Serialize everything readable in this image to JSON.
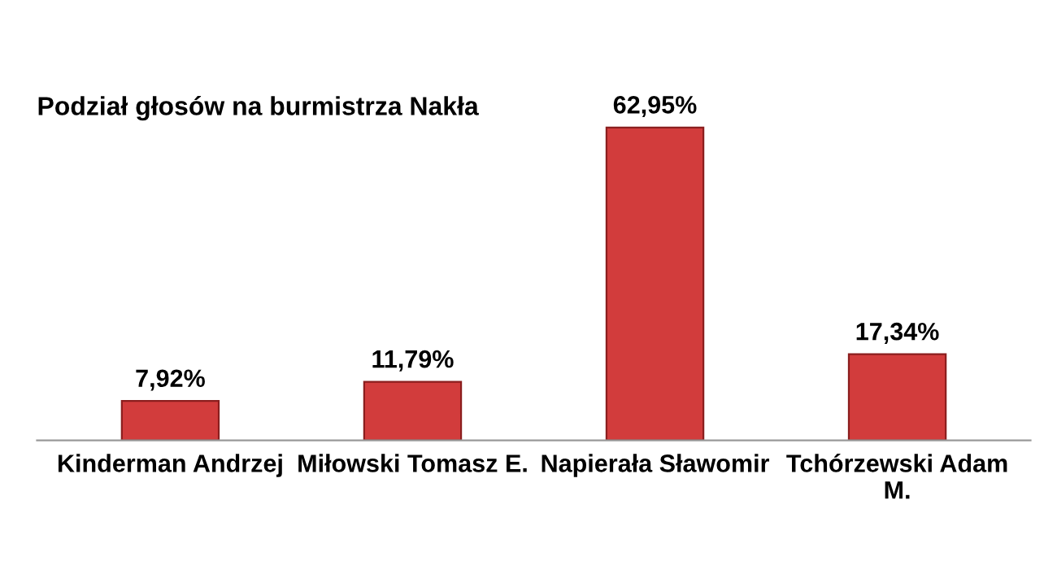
{
  "chart_data": {
    "type": "bar",
    "title": "Podział głosów na burmistrza Nakła",
    "categories": [
      "Kinderman Andrzej",
      "Miłowski Tomasz E.",
      "Napierała Sławomir",
      "Tchórzewski Adam M."
    ],
    "values": [
      7.92,
      11.79,
      62.95,
      17.34
    ],
    "color": "#d23c3c",
    "value_labels": [
      "7,92%",
      "11,79%",
      "62,95%",
      "17,34%"
    ],
    "grid": false,
    "legend": false
  }
}
